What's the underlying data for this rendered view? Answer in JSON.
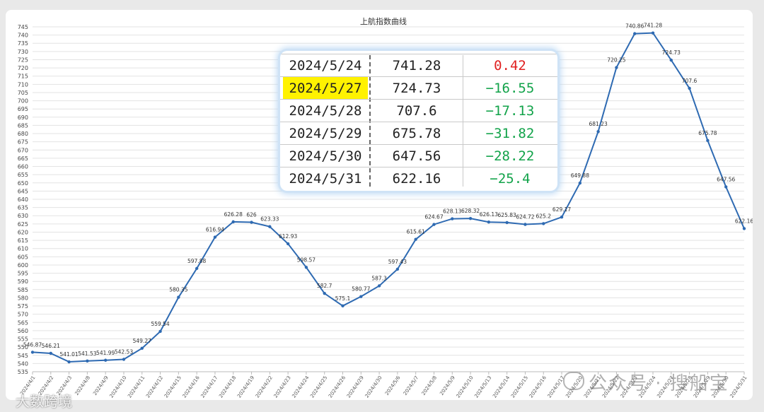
{
  "chart_data": {
    "type": "line",
    "title": "上航指数曲线",
    "ylim": [
      535,
      745
    ],
    "ytick_step": 5,
    "grid": true,
    "color": "#2e6ab2",
    "x": [
      "2024/4/1",
      "2024/4/2",
      "2024/4/3",
      "2024/4/8",
      "2024/4/9",
      "2024/4/10",
      "2024/4/11",
      "2024/4/12",
      "2024/4/15",
      "2024/4/16",
      "2024/4/17",
      "2024/4/18",
      "2024/4/19",
      "2024/4/22",
      "2024/4/23",
      "2024/4/24",
      "2024/4/25",
      "2024/4/26",
      "2024/4/29",
      "2024/4/30",
      "2024/5/6",
      "2024/5/7",
      "2024/5/8",
      "2024/5/9",
      "2024/5/10",
      "2024/5/13",
      "2024/5/14",
      "2024/5/15",
      "2024/5/16",
      "2024/5/17",
      "2024/5/20",
      "2024/5/21",
      "2024/5/22",
      "2024/5/23",
      "2024/5/24",
      "2024/5/27",
      "2024/5/28",
      "2024/5/29",
      "2024/5/30",
      "2024/5/31"
    ],
    "values": [
      546.87,
      546.21,
      541.01,
      541.53,
      541.99,
      542.53,
      549.27,
      559.54,
      580.35,
      597.88,
      616.94,
      626.28,
      626,
      623.33,
      612.93,
      598.57,
      582.7,
      575.1,
      580.77,
      587.3,
      597.43,
      615.61,
      624.67,
      628.13,
      628.32,
      626.13,
      625.83,
      624.72,
      625.2,
      629.17,
      649.88,
      681.23,
      720.25,
      740.86,
      741.28,
      724.73,
      707.6,
      675.78,
      647.56,
      622.16
    ]
  },
  "table": {
    "rows": [
      {
        "date": "2024/5/24",
        "close": "741.28",
        "change": "0.42",
        "dir": "up",
        "highlight": false
      },
      {
        "date": "2024/5/27",
        "close": "724.73",
        "change": "−16.55",
        "dir": "down",
        "highlight": true
      },
      {
        "date": "2024/5/28",
        "close": "707.6",
        "change": "−17.13",
        "dir": "down",
        "highlight": false
      },
      {
        "date": "2024/5/29",
        "close": "675.78",
        "change": "−31.82",
        "dir": "down",
        "highlight": false
      },
      {
        "date": "2024/5/30",
        "close": "647.56",
        "change": "−28.22",
        "dir": "down",
        "highlight": false
      },
      {
        "date": "2024/5/31",
        "close": "622.16",
        "change": "−25.4",
        "dir": "down",
        "highlight": false
      }
    ]
  },
  "watermarks": {
    "right": "公众号 · 搜船宝",
    "left": "大数跨境"
  }
}
